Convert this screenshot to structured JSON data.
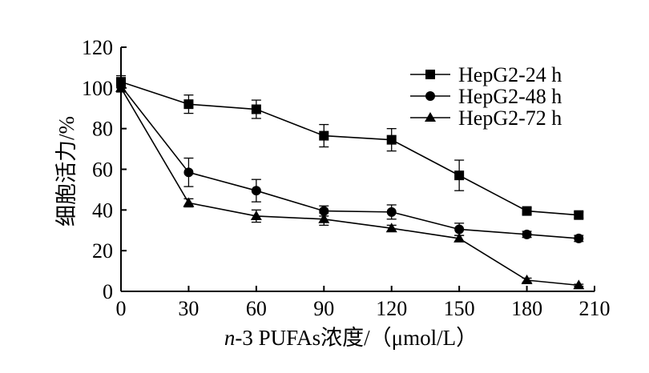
{
  "chart_data": {
    "type": "line",
    "xlabel": {
      "italic": "n",
      "rest": "-3 PUFAs浓度/（μmol/L）"
    },
    "ylabel": "细胞活力/%",
    "x_ticks": [
      0,
      30,
      60,
      90,
      120,
      150,
      180,
      210
    ],
    "y_ticks": [
      0,
      20,
      40,
      60,
      80,
      100,
      120
    ],
    "xlim": [
      0,
      210
    ],
    "ylim": [
      0,
      120
    ],
    "grid": false,
    "legend_position": "top-right",
    "series": [
      {
        "name": "HepG2-24 h",
        "marker": "square",
        "x": [
          0,
          30,
          60,
          90,
          120,
          150,
          180,
          203
        ],
        "y": [
          103,
          92,
          89.5,
          76.5,
          74.5,
          57,
          39.5,
          37.5
        ],
        "err": [
          3,
          4.5,
          4.5,
          5.5,
          5.5,
          7.5,
          1.5,
          1.5
        ]
      },
      {
        "name": "HepG2-48 h",
        "marker": "circle",
        "x": [
          0,
          30,
          60,
          90,
          120,
          150,
          180,
          203
        ],
        "y": [
          101,
          58.5,
          49.5,
          39.5,
          39,
          30.5,
          28,
          26
        ],
        "err": [
          3,
          7,
          5.5,
          2.5,
          3.5,
          3,
          1.5,
          1.5
        ]
      },
      {
        "name": "HepG2-72 h",
        "marker": "triangle",
        "x": [
          0,
          30,
          60,
          90,
          120,
          150,
          180,
          203
        ],
        "y": [
          100,
          43.5,
          37,
          35.5,
          31,
          26,
          5.5,
          3
        ],
        "err": [
          2,
          2,
          3,
          3,
          1.5,
          1.5,
          1,
          0.5
        ]
      }
    ]
  }
}
